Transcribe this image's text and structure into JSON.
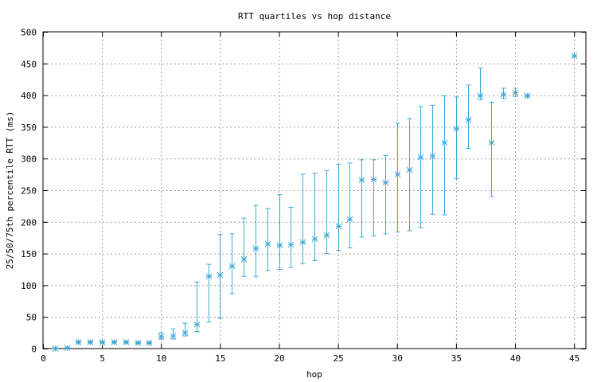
{
  "chart_data": {
    "type": "scatter",
    "title": "RTT quartiles vs hop distance",
    "xlabel": "hop",
    "ylabel": "25/50/75th percentile RTT (ms)",
    "xlim": [
      0,
      46
    ],
    "ylim": [
      0,
      500
    ],
    "x_ticks": [
      0,
      5,
      10,
      15,
      20,
      25,
      30,
      35,
      40,
      45
    ],
    "y_ticks": [
      0,
      50,
      100,
      150,
      200,
      250,
      300,
      350,
      400,
      450,
      500
    ],
    "grid": true,
    "marker": "asterisk",
    "color": "#3ba9d6",
    "points": [
      {
        "hop": 1,
        "p25": 0,
        "median": 0,
        "p75": 1
      },
      {
        "hop": 2,
        "p25": 0,
        "median": 1,
        "p75": 2
      },
      {
        "hop": 3,
        "p25": 9,
        "median": 10,
        "p75": 11
      },
      {
        "hop": 4,
        "p25": 9,
        "median": 10,
        "p75": 11
      },
      {
        "hop": 5,
        "p25": 9,
        "median": 10,
        "p75": 11
      },
      {
        "hop": 6,
        "p25": 9,
        "median": 10,
        "p75": 11
      },
      {
        "hop": 7,
        "p25": 9,
        "median": 10,
        "p75": 11
      },
      {
        "hop": 8,
        "p25": 8,
        "median": 9,
        "p75": 10
      },
      {
        "hop": 9,
        "p25": 8,
        "median": 9,
        "p75": 10
      },
      {
        "hop": 10,
        "p25": 15,
        "median": 19,
        "p75": 25
      },
      {
        "hop": 11,
        "p25": 15,
        "median": 20,
        "p75": 31
      },
      {
        "hop": 12,
        "p25": 20,
        "median": 25,
        "p75": 40
      },
      {
        "hop": 13,
        "p25": 27,
        "median": 38,
        "p75": 105
      },
      {
        "hop": 14,
        "p25": 42,
        "median": 114,
        "p75": 133
      },
      {
        "hop": 15,
        "p25": 48,
        "median": 116,
        "p75": 180
      },
      {
        "hop": 16,
        "p25": 87,
        "median": 130,
        "p75": 181
      },
      {
        "hop": 17,
        "p25": 114,
        "median": 141,
        "p75": 206
      },
      {
        "hop": 18,
        "p25": 114,
        "median": 158,
        "p75": 226
      },
      {
        "hop": 19,
        "p25": 123,
        "median": 165,
        "p75": 221
      },
      {
        "hop": 20,
        "p25": 125,
        "median": 163,
        "p75": 243
      },
      {
        "hop": 21,
        "p25": 128,
        "median": 164,
        "p75": 223
      },
      {
        "hop": 22,
        "p25": 134,
        "median": 168,
        "p75": 275
      },
      {
        "hop": 23,
        "p25": 139,
        "median": 173,
        "p75": 277
      },
      {
        "hop": 24,
        "p25": 150,
        "median": 179,
        "p75": 281
      },
      {
        "hop": 25,
        "p25": 155,
        "median": 193,
        "p75": 291
      },
      {
        "hop": 26,
        "p25": 159,
        "median": 204,
        "p75": 293
      },
      {
        "hop": 27,
        "p25": 176,
        "median": 266,
        "p75": 298
      },
      {
        "hop": 28,
        "p25": 178,
        "median": 267,
        "p75": 298
      },
      {
        "hop": 29,
        "p25": 181,
        "median": 262,
        "p75": 305
      },
      {
        "hop": 30,
        "p25": 184,
        "median": 275,
        "p75": 356
      },
      {
        "hop": 31,
        "p25": 186,
        "median": 282,
        "p75": 363
      },
      {
        "hop": 32,
        "p25": 191,
        "median": 302,
        "p75": 382
      },
      {
        "hop": 33,
        "p25": 212,
        "median": 304,
        "p75": 384
      },
      {
        "hop": 34,
        "p25": 211,
        "median": 325,
        "p75": 399
      },
      {
        "hop": 35,
        "p25": 268,
        "median": 347,
        "p75": 397
      },
      {
        "hop": 36,
        "p25": 316,
        "median": 361,
        "p75": 416
      },
      {
        "hop": 37,
        "p25": 393,
        "median": 399,
        "p75": 443
      },
      {
        "hop": 38,
        "p25": 240,
        "median": 325,
        "p75": 389
      },
      {
        "hop": 39,
        "p25": 395,
        "median": 401,
        "p75": 411
      },
      {
        "hop": 40,
        "p25": 398,
        "median": 404,
        "p75": 411
      },
      {
        "hop": 41,
        "p25": 398,
        "median": 399,
        "p75": 400
      },
      {
        "hop": 45,
        "p25": 462,
        "median": 462,
        "p75": 462
      }
    ]
  }
}
